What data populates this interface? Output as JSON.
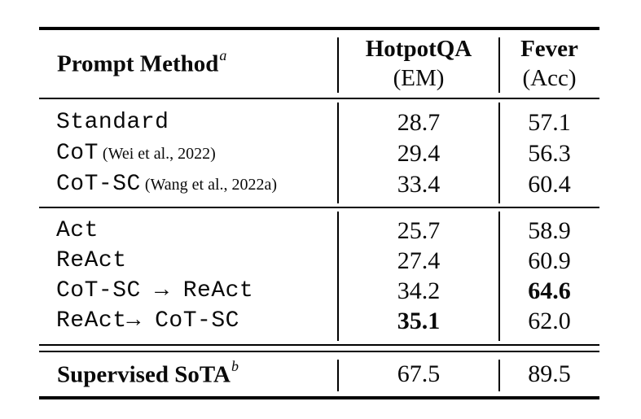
{
  "table": {
    "header": {
      "method_label": "Prompt Method",
      "method_sup": "a",
      "col2_title": "HotpotQA",
      "col2_metric": "(EM)",
      "col3_title": "Fever",
      "col3_metric": "(Acc)"
    },
    "section1_rows": [
      {
        "method": "Standard",
        "citation": "",
        "hotpotqa": "28.7",
        "fever": "57.1"
      },
      {
        "method": "CoT",
        "citation": "(Wei et al., 2022)",
        "hotpotqa": "29.4",
        "fever": "56.3"
      },
      {
        "method": "CoT-SC",
        "citation": "(Wang et al., 2022a)",
        "hotpotqa": "33.4",
        "fever": "60.4"
      }
    ],
    "section2_rows": [
      {
        "method": "Act",
        "citation": "",
        "hotpotqa": "25.7",
        "fever": "58.9"
      },
      {
        "method": "ReAct",
        "citation": "",
        "hotpotqa": "27.4",
        "fever": "60.9"
      },
      {
        "method": "CoT-SC → ReAct",
        "citation": "",
        "hotpotqa": "34.2",
        "fever": "64.6"
      },
      {
        "method": "ReAct→ CoT-SC",
        "citation": "",
        "hotpotqa": "35.1",
        "fever": "62.0"
      }
    ],
    "footer": {
      "label": "Supervised SoTA",
      "sup": "b",
      "hotpotqa": "67.5",
      "fever": "89.5"
    }
  }
}
